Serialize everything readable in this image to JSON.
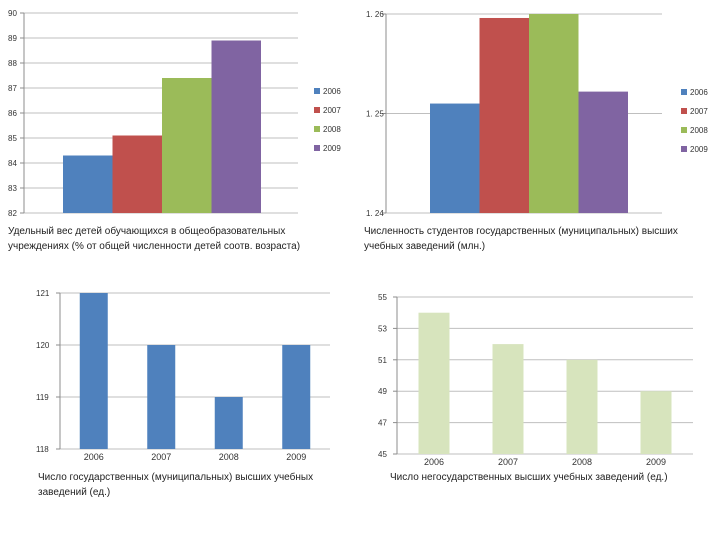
{
  "colors": {
    "series": [
      "#4f81bd",
      "#c0504d",
      "#9bbb59",
      "#8064a2"
    ],
    "single_blue": "#4f81bd",
    "single_green": "#d7e4bd",
    "grid": "#bfbfbf",
    "axis": "#8c8c8c"
  },
  "chart_data": [
    {
      "type": "bar",
      "title": "",
      "categories": [
        ""
      ],
      "series": [
        {
          "name": "2006",
          "values": [
            84.3
          ]
        },
        {
          "name": "2007",
          "values": [
            85.1
          ]
        },
        {
          "name": "2008",
          "values": [
            87.4
          ]
        },
        {
          "name": "2009",
          "values": [
            88.9
          ]
        }
      ],
      "ylim": [
        82,
        90
      ],
      "yticks": [
        82,
        83,
        84,
        85,
        86,
        87,
        88,
        89,
        90
      ],
      "ytick_labels": [
        "82",
        "83",
        "84",
        "85",
        "86",
        "87",
        "88",
        "89",
        "90"
      ],
      "legend": [
        "2006",
        "2007",
        "2008",
        "2009"
      ],
      "legend_position": "right",
      "grid": true,
      "caption": [
        "Удельный вес детей обучающихся в общеобразовательных",
        "учреждениях (% от общей численности детей соотв. возраста)"
      ]
    },
    {
      "type": "bar",
      "title": "",
      "categories": [
        ""
      ],
      "series": [
        {
          "name": "2006",
          "values": [
            1.251
          ]
        },
        {
          "name": "2007",
          "values": [
            1.2596
          ]
        },
        {
          "name": "2008",
          "values": [
            1.26
          ]
        },
        {
          "name": "2009",
          "values": [
            1.2522
          ]
        }
      ],
      "ylim": [
        1.24,
        1.26
      ],
      "yticks": [
        1.24,
        1.25,
        1.26
      ],
      "ytick_labels": [
        "1. 24",
        "1. 25",
        "1. 26"
      ],
      "legend": [
        "2006",
        "2007",
        "2008",
        "2009"
      ],
      "legend_position": "right",
      "grid": true,
      "caption": [
        "Численность студентов государственных (муниципальных) высших",
        "учебных заведений (млн.)"
      ]
    },
    {
      "type": "bar",
      "title": "",
      "categories": [
        "2006",
        "2007",
        "2008",
        "2009"
      ],
      "values": [
        121,
        120,
        119,
        120
      ],
      "ylim": [
        118,
        121
      ],
      "yticks": [
        118,
        119,
        120,
        121
      ],
      "ytick_labels": [
        "118",
        "119",
        "120",
        "121"
      ],
      "grid": true,
      "caption": [
        "Число государственных (муниципальных) высших учебных",
        "заведений (ед.)"
      ]
    },
    {
      "type": "bar",
      "title": "",
      "categories": [
        "2006",
        "2007",
        "2008",
        "2009"
      ],
      "values": [
        54,
        52,
        51,
        49
      ],
      "ylim": [
        45,
        55
      ],
      "yticks": [
        45,
        47,
        49,
        51,
        53,
        55
      ],
      "ytick_labels": [
        "45",
        "47",
        "49",
        "51",
        "53",
        "55"
      ],
      "grid": true,
      "caption": [
        "Число негосударственных высших учебных заведений  (ед.)"
      ]
    }
  ]
}
